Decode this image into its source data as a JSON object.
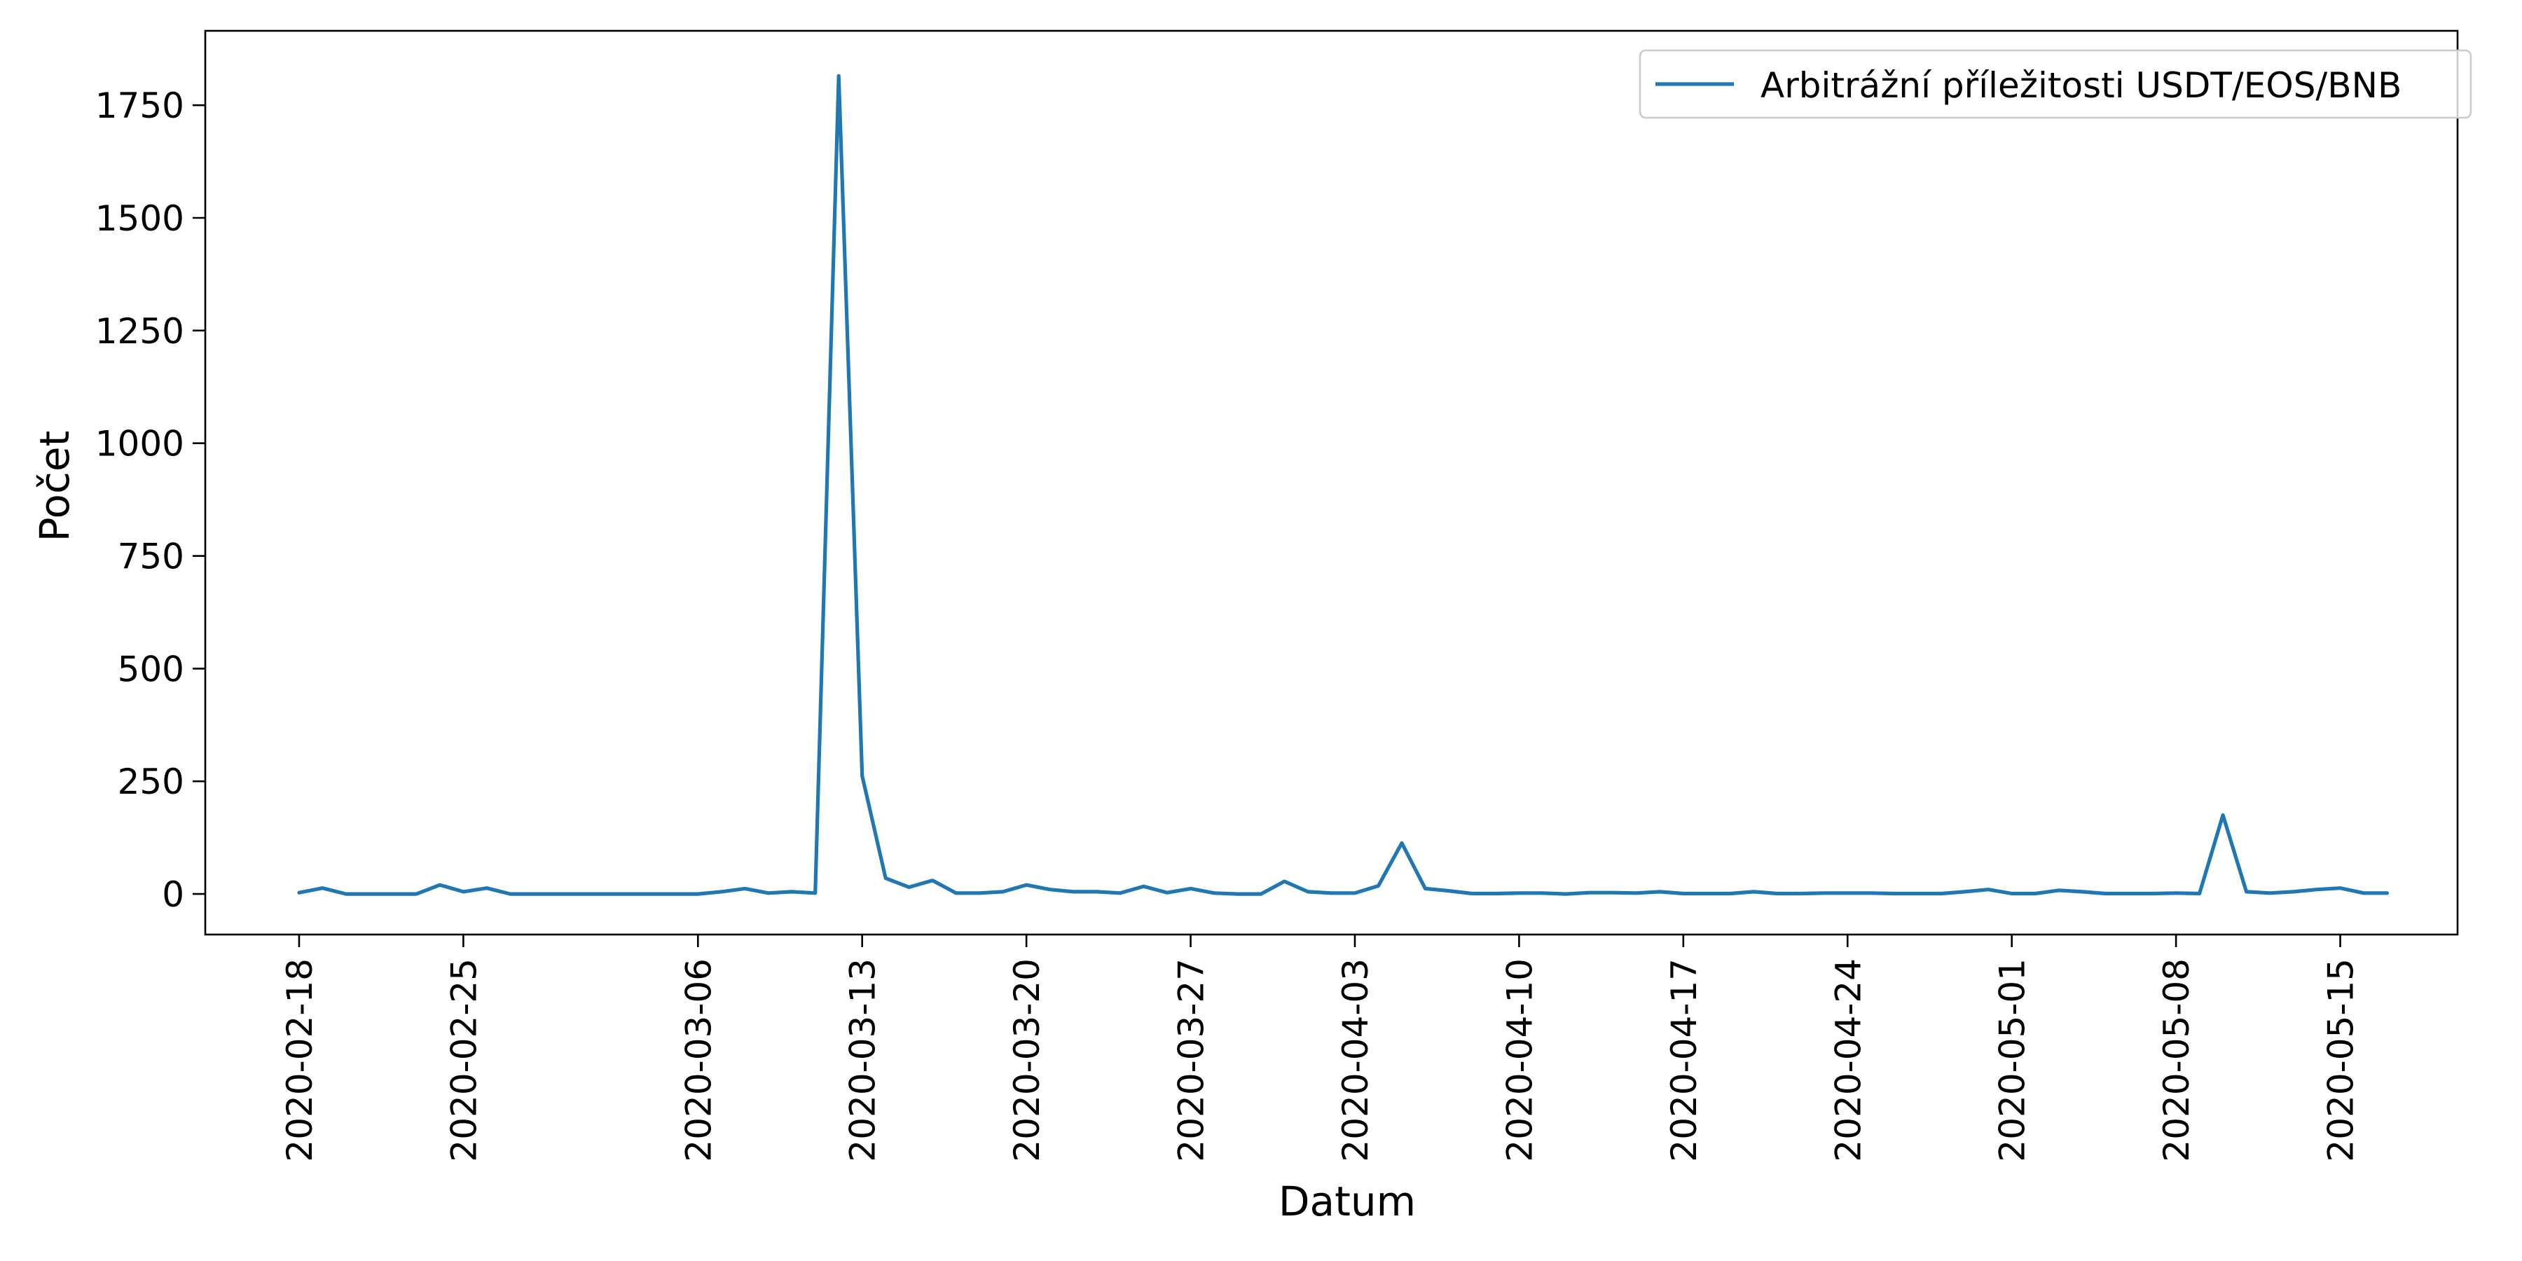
{
  "chart_data": {
    "type": "line",
    "title": "",
    "xlabel": "Datum",
    "ylabel": "Počet",
    "x_ticks": [
      "2020-02-18",
      "2020-02-25",
      "2020-03-06",
      "2020-03-13",
      "2020-03-20",
      "2020-03-27",
      "2020-04-03",
      "2020-04-10",
      "2020-04-17",
      "2020-04-24",
      "2020-05-01",
      "2020-05-08",
      "2020-05-15"
    ],
    "y_ticks": [
      0,
      250,
      500,
      750,
      1000,
      1250,
      1500,
      1750
    ],
    "ylim": [
      -90,
      1915
    ],
    "xlim": [
      "2020-02-14",
      "2020-05-20"
    ],
    "grid": false,
    "legend_position": "top-right",
    "series": [
      {
        "name": "Arbitrážní příležitosti USDT/EOS/BNB",
        "color": "#1f77b4",
        "dates": [
          "2020-02-18",
          "2020-02-19",
          "2020-02-20",
          "2020-02-21",
          "2020-02-22",
          "2020-02-23",
          "2020-02-24",
          "2020-02-25",
          "2020-02-26",
          "2020-02-27",
          "2020-02-28",
          "2020-02-29",
          "2020-03-01",
          "2020-03-02",
          "2020-03-06",
          "2020-03-07",
          "2020-03-08",
          "2020-03-09",
          "2020-03-10",
          "2020-03-11",
          "2020-03-12",
          "2020-03-13",
          "2020-03-14",
          "2020-03-15",
          "2020-03-16",
          "2020-03-17",
          "2020-03-18",
          "2020-03-19",
          "2020-03-20",
          "2020-03-21",
          "2020-03-22",
          "2020-03-23",
          "2020-03-24",
          "2020-03-25",
          "2020-03-26",
          "2020-03-27",
          "2020-03-28",
          "2020-03-29",
          "2020-03-30",
          "2020-03-31",
          "2020-04-01",
          "2020-04-02",
          "2020-04-03",
          "2020-04-04",
          "2020-04-05",
          "2020-04-06",
          "2020-04-07",
          "2020-04-08",
          "2020-04-09",
          "2020-04-10",
          "2020-04-11",
          "2020-04-12",
          "2020-04-13",
          "2020-04-14",
          "2020-04-15",
          "2020-04-16",
          "2020-04-17",
          "2020-04-18",
          "2020-04-19",
          "2020-04-20",
          "2020-04-21",
          "2020-04-22",
          "2020-04-23",
          "2020-04-24",
          "2020-04-25",
          "2020-04-26",
          "2020-04-27",
          "2020-04-28",
          "2020-04-29",
          "2020-04-30",
          "2020-05-01",
          "2020-05-02",
          "2020-05-03",
          "2020-05-04",
          "2020-05-05",
          "2020-05-06",
          "2020-05-07",
          "2020-05-08",
          "2020-05-09",
          "2020-05-10",
          "2020-05-11",
          "2020-05-12",
          "2020-05-13",
          "2020-05-14",
          "2020-05-15",
          "2020-05-16",
          "2020-05-17"
        ],
        "values": [
          3,
          13,
          0,
          0,
          0,
          0,
          20,
          5,
          13,
          0,
          0,
          0,
          0,
          0,
          0,
          5,
          12,
          2,
          5,
          2,
          1815,
          262,
          35,
          15,
          30,
          2,
          2,
          5,
          20,
          10,
          5,
          5,
          2,
          17,
          3,
          12,
          2,
          0,
          0,
          28,
          5,
          2,
          2,
          18,
          113,
          12,
          7,
          1,
          1,
          2,
          2,
          0,
          3,
          3,
          2,
          5,
          1,
          1,
          1,
          5,
          1,
          1,
          2,
          2,
          2,
          1,
          1,
          1,
          5,
          10,
          1,
          1,
          8,
          5,
          1,
          1,
          1,
          2,
          1,
          175,
          5,
          2,
          5,
          10,
          13,
          2,
          2
        ]
      }
    ]
  }
}
